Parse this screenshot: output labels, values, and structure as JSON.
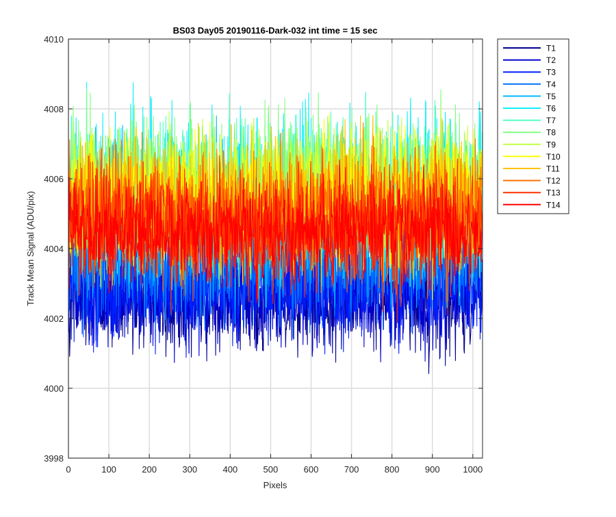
{
  "chart_data": {
    "type": "line",
    "title": "BS03 Day05 20190116-Dark-032 int time = 15 sec",
    "xlabel": "Pixels",
    "ylabel": "Track Mean Signal (ADU/pix)",
    "xlim": [
      0,
      1024
    ],
    "ylim": [
      3998,
      4010
    ],
    "xticks": [
      0,
      100,
      200,
      300,
      400,
      500,
      600,
      700,
      800,
      900,
      1000
    ],
    "yticks": [
      3998,
      4000,
      4002,
      4004,
      4006,
      4008,
      4010
    ],
    "grid": true,
    "legend_position": "outside-top-right",
    "series": [
      {
        "name": "T1",
        "color": "#00008f",
        "mean": 4002.6,
        "spread": 0.9
      },
      {
        "name": "T2",
        "color": "#0000d0",
        "mean": 4002.8,
        "spread": 0.9
      },
      {
        "name": "T3",
        "color": "#0020ff",
        "mean": 4003.0,
        "spread": 0.9
      },
      {
        "name": "T4",
        "color": "#0070ff",
        "mean": 4003.6,
        "spread": 0.9
      },
      {
        "name": "T5",
        "color": "#00b8ff",
        "mean": 4004.6,
        "spread": 1.2
      },
      {
        "name": "T6",
        "color": "#10f0ff",
        "mean": 4005.6,
        "spread": 1.3
      },
      {
        "name": "T7",
        "color": "#50ffc0",
        "mean": 4005.6,
        "spread": 1.2
      },
      {
        "name": "T8",
        "color": "#80ff80",
        "mean": 4005.8,
        "spread": 1.2
      },
      {
        "name": "T9",
        "color": "#c0ff40",
        "mean": 4005.6,
        "spread": 1.1
      },
      {
        "name": "T10",
        "color": "#ffff00",
        "mean": 4005.5,
        "spread": 1.1
      },
      {
        "name": "T11",
        "color": "#ffc000",
        "mean": 4005.3,
        "spread": 1.1
      },
      {
        "name": "T12",
        "color": "#ff7000",
        "mean": 4005.0,
        "spread": 1.0
      },
      {
        "name": "T13",
        "color": "#ff3000",
        "mean": 4004.6,
        "spread": 1.0
      },
      {
        "name": "T14",
        "color": "#ff0000",
        "mean": 4004.5,
        "spread": 0.8
      }
    ],
    "num_points": 1024
  }
}
